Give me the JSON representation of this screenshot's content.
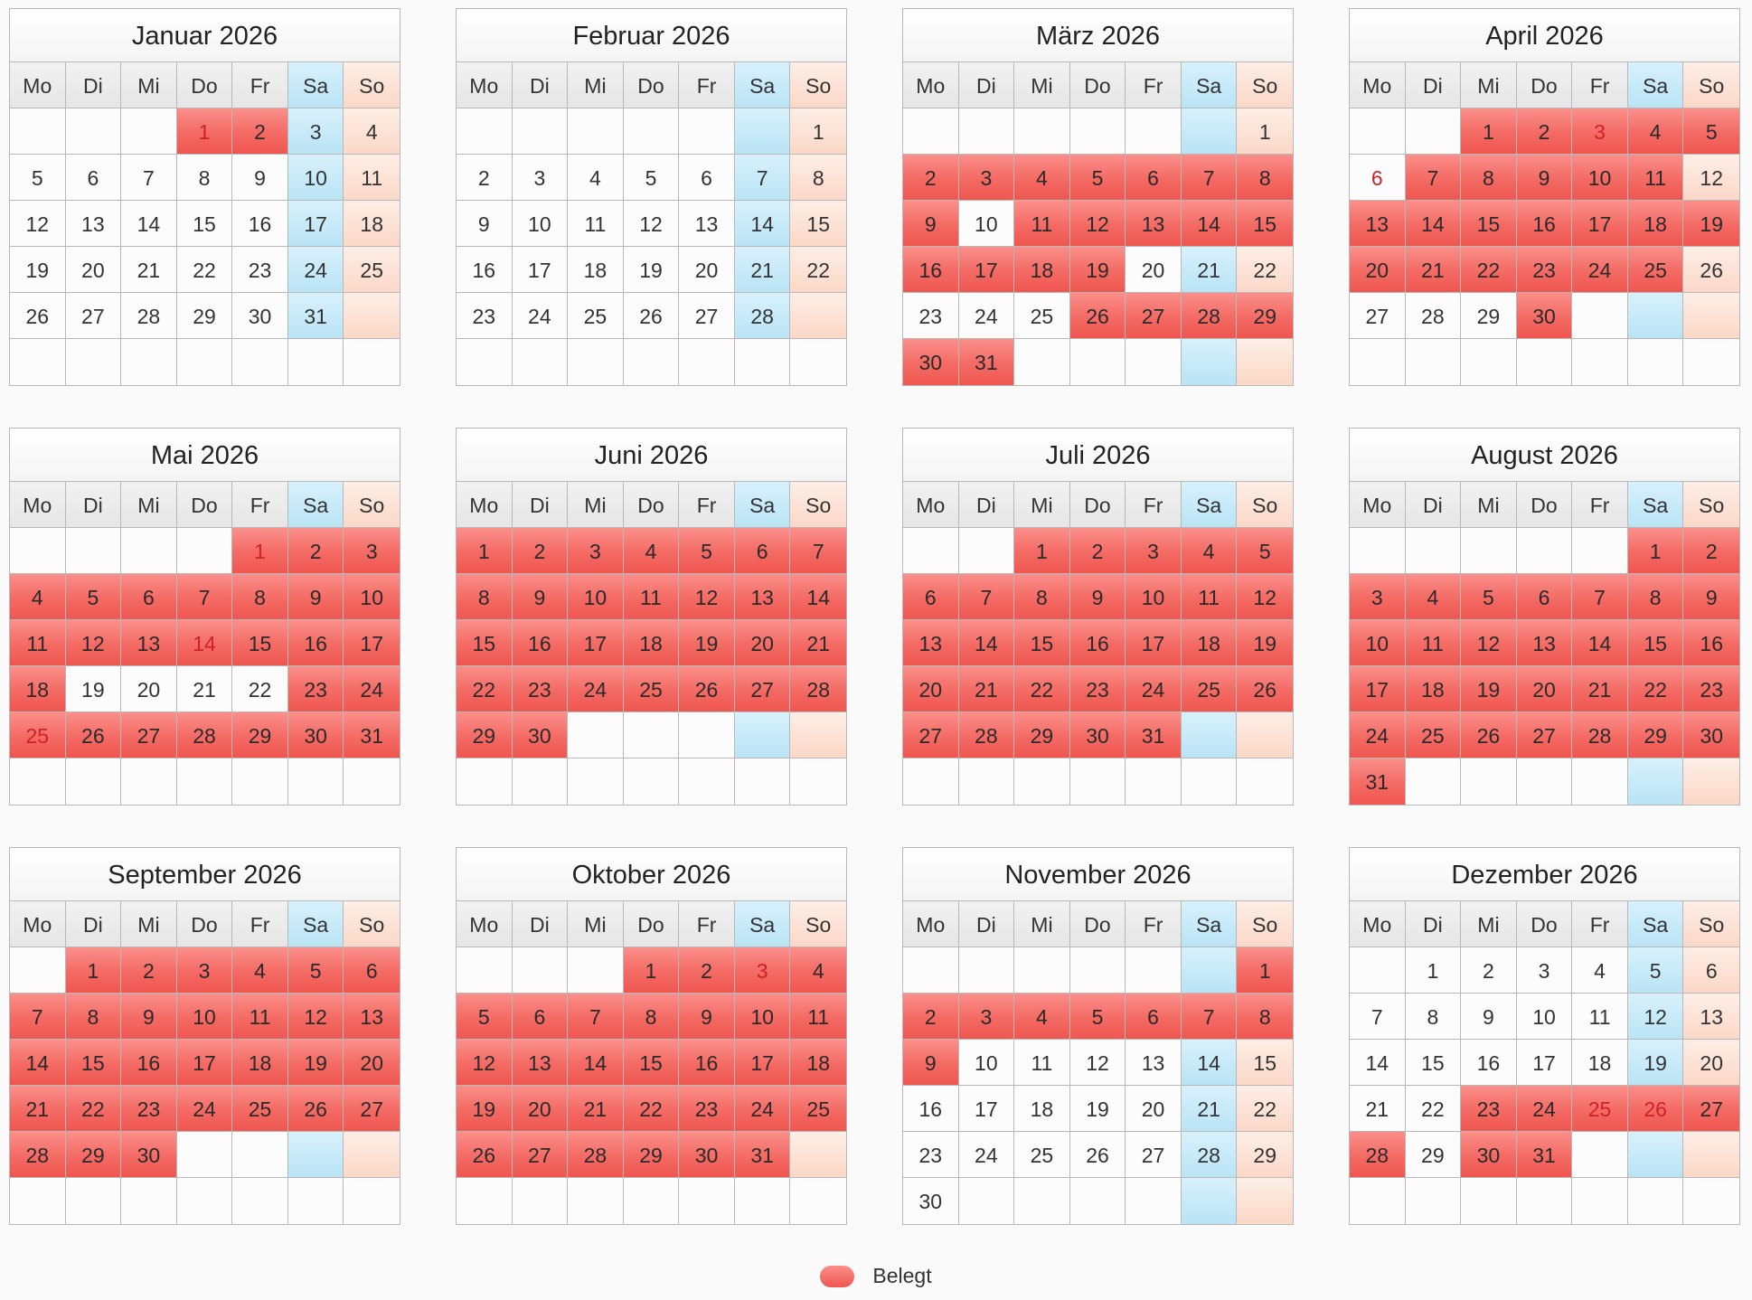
{
  "weekdays": [
    "Mo",
    "Di",
    "Mi",
    "Do",
    "Fr",
    "Sa",
    "So"
  ],
  "legend": {
    "label": "Belegt"
  },
  "colors": {
    "booked": "#f46a64",
    "saturday": "#b9e4f6",
    "sunday": "#fbd8c8",
    "holiday_text": "#d0202a"
  },
  "months": [
    {
      "title": "Januar 2026",
      "offset": 3,
      "days": 31,
      "rows": 6,
      "booked": [
        1,
        2
      ],
      "red": [
        1
      ]
    },
    {
      "title": "Februar 2026",
      "offset": 6,
      "days": 28,
      "rows": 6,
      "booked": [],
      "red": []
    },
    {
      "title": "März 2026",
      "offset": 6,
      "days": 31,
      "rows": 6,
      "booked": [
        2,
        3,
        4,
        5,
        6,
        7,
        8,
        9,
        11,
        12,
        13,
        14,
        15,
        16,
        17,
        18,
        19,
        26,
        27,
        28,
        29,
        30,
        31
      ],
      "red": []
    },
    {
      "title": "April 2026",
      "offset": 2,
      "days": 30,
      "rows": 6,
      "booked": [
        1,
        2,
        3,
        4,
        5,
        7,
        8,
        9,
        10,
        11,
        13,
        14,
        15,
        16,
        17,
        18,
        19,
        20,
        21,
        22,
        23,
        24,
        25,
        30
      ],
      "red": [
        3,
        6
      ]
    },
    {
      "title": "Mai 2026",
      "offset": 4,
      "days": 31,
      "rows": 6,
      "booked": [
        1,
        2,
        3,
        4,
        5,
        6,
        7,
        8,
        9,
        10,
        11,
        12,
        13,
        14,
        15,
        16,
        17,
        18,
        23,
        24,
        25,
        26,
        27,
        28,
        29,
        30,
        31
      ],
      "red": [
        1,
        14,
        25
      ]
    },
    {
      "title": "Juni 2026",
      "offset": 0,
      "days": 30,
      "rows": 6,
      "booked": [
        1,
        2,
        3,
        4,
        5,
        6,
        7,
        8,
        9,
        10,
        11,
        12,
        13,
        14,
        15,
        16,
        17,
        18,
        19,
        20,
        21,
        22,
        23,
        24,
        25,
        26,
        27,
        28,
        29,
        30
      ],
      "red": []
    },
    {
      "title": "Juli 2026",
      "offset": 2,
      "days": 31,
      "rows": 6,
      "booked": [
        1,
        2,
        3,
        4,
        5,
        6,
        7,
        8,
        9,
        10,
        11,
        12,
        13,
        14,
        15,
        16,
        17,
        18,
        19,
        20,
        21,
        22,
        23,
        24,
        25,
        26,
        27,
        28,
        29,
        30,
        31
      ],
      "red": []
    },
    {
      "title": "August 2026",
      "offset": 5,
      "days": 31,
      "rows": 6,
      "booked": [
        1,
        2,
        3,
        4,
        5,
        6,
        7,
        8,
        9,
        10,
        11,
        12,
        13,
        14,
        15,
        16,
        17,
        18,
        19,
        20,
        21,
        22,
        23,
        24,
        25,
        26,
        27,
        28,
        29,
        30,
        31
      ],
      "red": []
    },
    {
      "title": "September 2026",
      "offset": 1,
      "days": 30,
      "rows": 6,
      "booked": [
        1,
        2,
        3,
        4,
        5,
        6,
        7,
        8,
        9,
        10,
        11,
        12,
        13,
        14,
        15,
        16,
        17,
        18,
        19,
        20,
        21,
        22,
        23,
        24,
        25,
        26,
        27,
        28,
        29,
        30
      ],
      "red": []
    },
    {
      "title": "Oktober 2026",
      "offset": 3,
      "days": 31,
      "rows": 6,
      "booked": [
        1,
        2,
        3,
        4,
        5,
        6,
        7,
        8,
        9,
        10,
        11,
        12,
        13,
        14,
        15,
        16,
        17,
        18,
        19,
        20,
        21,
        22,
        23,
        24,
        25,
        26,
        27,
        28,
        29,
        30,
        31
      ],
      "red": [
        3
      ]
    },
    {
      "title": "November 2026",
      "offset": 6,
      "days": 30,
      "rows": 6,
      "booked": [
        1,
        2,
        3,
        4,
        5,
        6,
        7,
        8,
        9
      ],
      "red": []
    },
    {
      "title": "Dezember 2026",
      "offset": 1,
      "days": 31,
      "rows": 6,
      "booked": [
        23,
        24,
        25,
        26,
        27,
        28,
        30,
        31
      ],
      "red": [
        25,
        26
      ]
    }
  ]
}
